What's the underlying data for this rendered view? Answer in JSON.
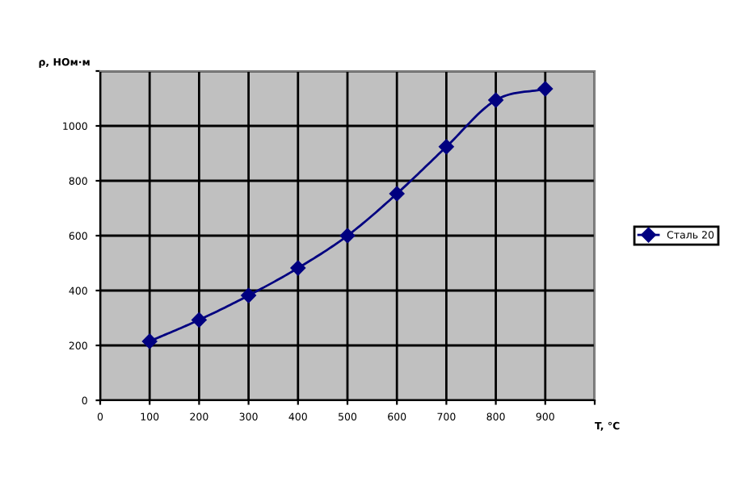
{
  "chart_data": {
    "type": "line",
    "xlabel": "T, °C",
    "ylabel": "ρ, НОм·м",
    "x": [
      100,
      200,
      300,
      400,
      500,
      600,
      700,
      800,
      900
    ],
    "series": [
      {
        "name": "Сталь 20",
        "color": "#000080",
        "values": [
          215,
          293,
          382,
          482,
          600,
          753,
          924,
          1094,
          1135
        ]
      }
    ],
    "xlim": [
      0,
      1000
    ],
    "xticks": [
      0,
      100,
      200,
      300,
      400,
      500,
      600,
      700,
      800,
      900,
      {
        "value": 1000,
        "label": null
      }
    ],
    "ylim": [
      0,
      1200
    ],
    "yticks": [
      0,
      200,
      400,
      600,
      800,
      1000,
      {
        "value": 1200,
        "label": null
      }
    ],
    "grid": true,
    "legend": "right",
    "marker": "diamond",
    "line_style": "solid"
  }
}
